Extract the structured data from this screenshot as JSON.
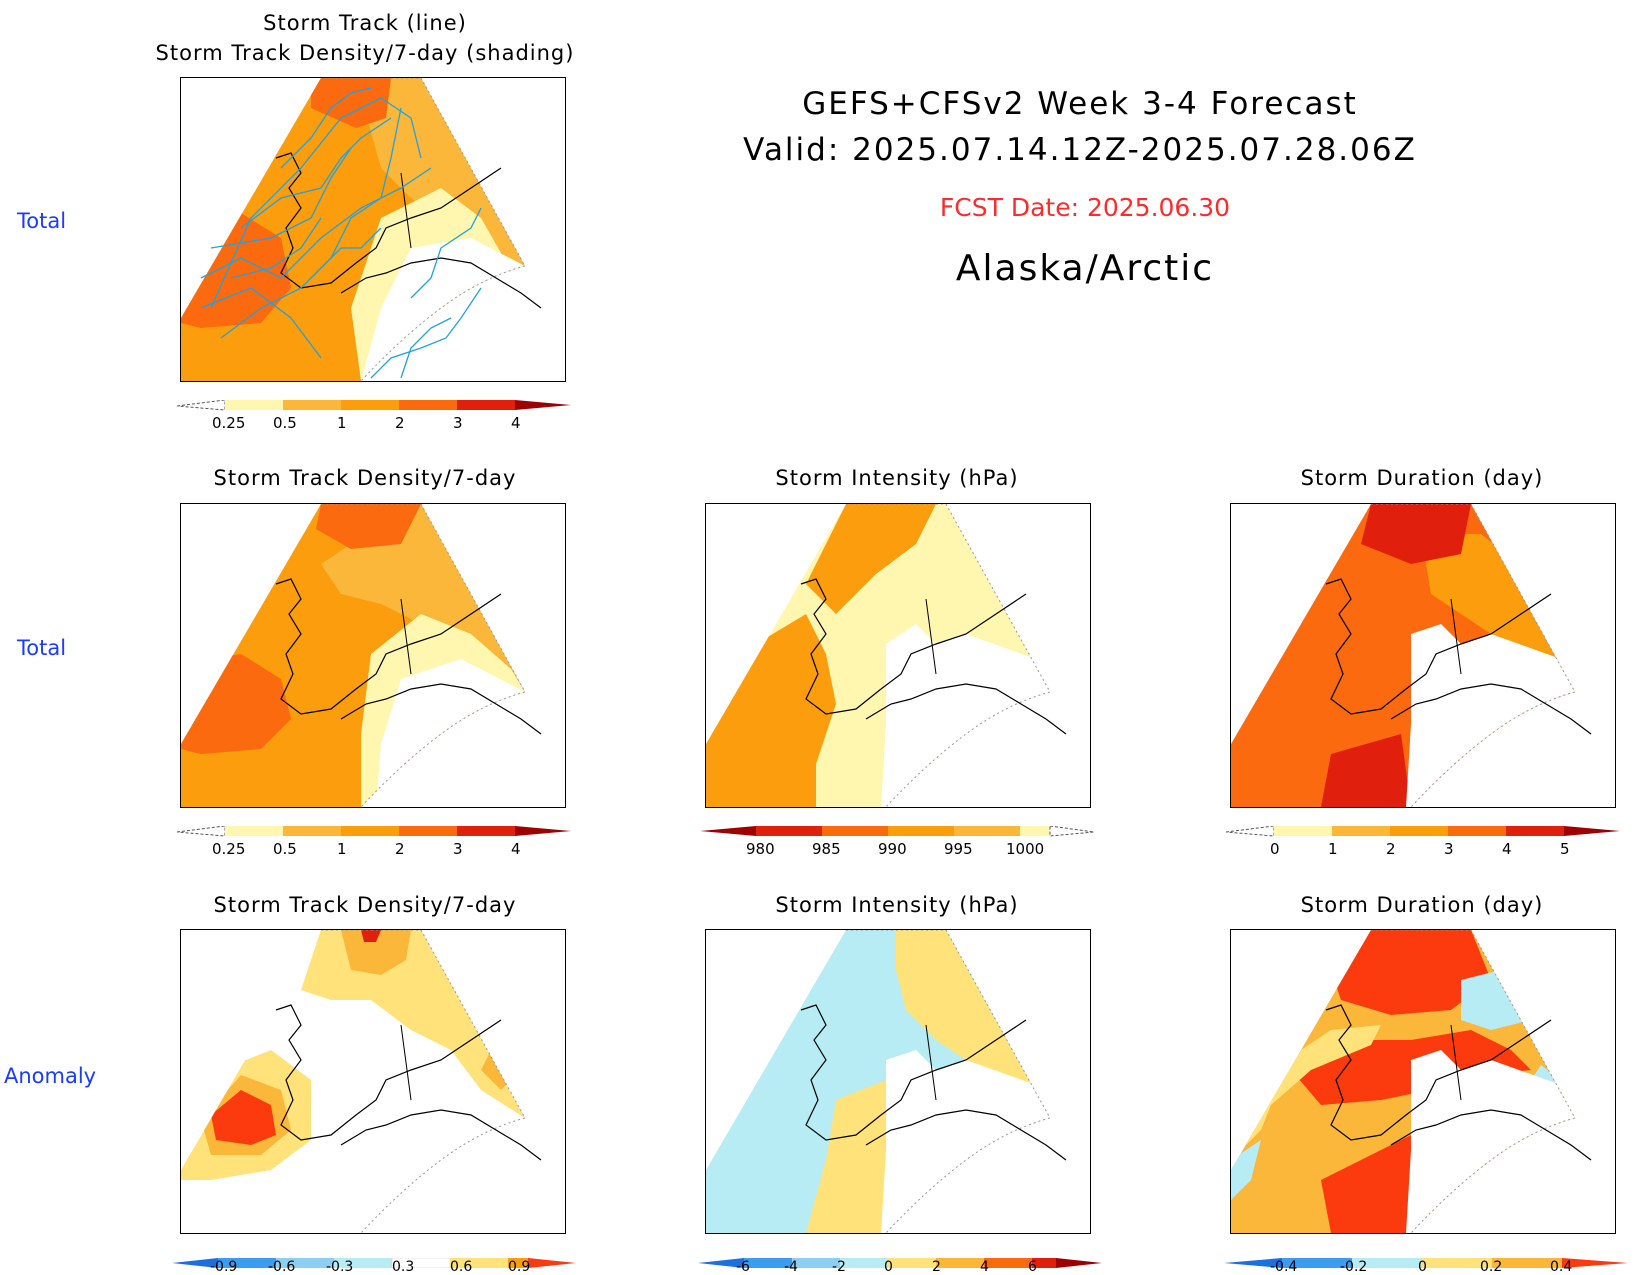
{
  "header": {
    "line1": "GEFS+CFSv2 Week 3-4 Forecast",
    "line2": "Valid: 2025.07.14.12Z-2025.07.28.06Z",
    "fcst_date": "FCST Date: 2025.06.30",
    "region": "Alaska/Arctic",
    "fcst_color": "#ff2a2a"
  },
  "row_labels": [
    "Total",
    "Total",
    "Anomaly"
  ],
  "colors": {
    "lightyellow": "#fff6b0",
    "yellow": "#ffe27a",
    "gold": "#fbb73a",
    "orange": "#fb9d0c",
    "darkorange": "#fb6a0e",
    "red": "#e0200c",
    "redorange": "#fb3b0d",
    "cyan": "#b7ecf4",
    "lightblue": "#8ccff2",
    "blue": "#3b9cf0",
    "track": "#22a2dc"
  },
  "panels": [
    {
      "id": "track",
      "title1": "Storm Track (line)",
      "title2": "Storm Track Density/7-day (shading)"
    },
    {
      "id": "density-total",
      "title": "Storm Track Density/7-day"
    },
    {
      "id": "intensity-total",
      "title": "Storm Intensity (hPa)"
    },
    {
      "id": "duration-total",
      "title": "Storm Duration (day)"
    },
    {
      "id": "density-anom",
      "title": "Storm Track Density/7-day"
    },
    {
      "id": "intensity-anom",
      "title": "Storm Intensity (hPa)"
    },
    {
      "id": "duration-anom",
      "title": "Storm Duration (day)"
    }
  ],
  "colorbars": {
    "density": {
      "labels": [
        "0.25",
        "0.5",
        "1",
        "2",
        "3",
        "4"
      ],
      "colors": [
        "#fff6b0",
        "#fbb73a",
        "#fb9d0c",
        "#fb6a0e",
        "#e0200c",
        "#a00000"
      ]
    },
    "intensity": {
      "labels": [
        "980",
        "985",
        "990",
        "995",
        "1000"
      ],
      "colors": [
        "#a00000",
        "#e0200c",
        "#fb6a0e",
        "#fb9d0c",
        "#fbb73a",
        "#fff6b0"
      ]
    },
    "duration": {
      "labels": [
        "0",
        "1",
        "2",
        "3",
        "4",
        "5"
      ],
      "colors": [
        "#fff6b0",
        "#fbb73a",
        "#fb9d0c",
        "#fb6a0e",
        "#e0200c",
        "#a00000"
      ]
    },
    "density_anom": {
      "labels": [
        "-0.9",
        "-0.6",
        "-0.3",
        "0.3",
        "0.6",
        "0.9"
      ]
    },
    "intensity_anom": {
      "labels": [
        "-6",
        "-4",
        "-2",
        "0",
        "2",
        "4",
        "6"
      ]
    },
    "duration_anom": {
      "labels": [
        "-0.4",
        "-0.2",
        "0",
        "0.2",
        "0.4"
      ]
    }
  }
}
